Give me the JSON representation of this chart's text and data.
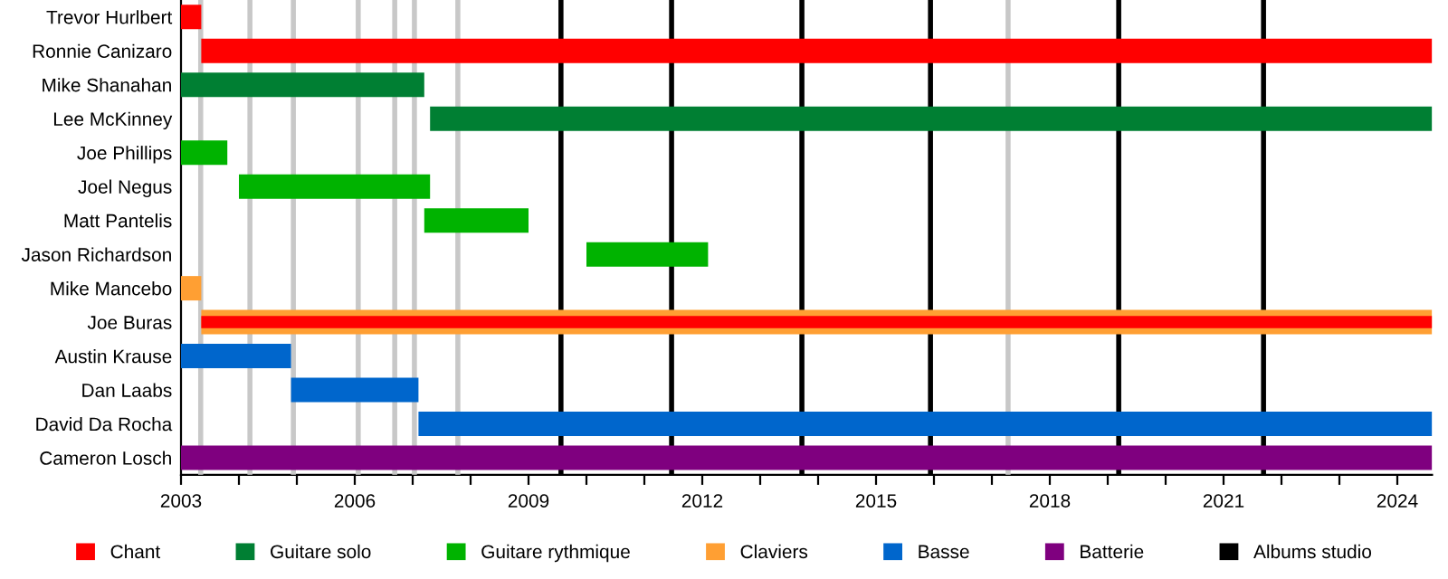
{
  "chart_data": {
    "type": "bar",
    "orientation": "horizontal",
    "categories": [
      "Trevor Hurlbert",
      "Ronnie Canizaro",
      "Mike Shanahan",
      "Lee McKinney",
      "Joe Phillips",
      "Joel Negus",
      "Matt Pantelis",
      "Jason Richardson",
      "Mike Mancebo",
      "Joe Buras",
      "Austin Krause",
      "Dan Laabs",
      "David Da Rocha",
      "Cameron Losch"
    ],
    "series": [
      {
        "name": "Chant",
        "color": "#ff0000",
        "base": [
          2003.0,
          2003.35,
          null,
          null,
          null,
          null,
          null,
          null,
          null,
          2003.35,
          null,
          null,
          null,
          null
        ],
        "values": [
          0.35,
          21.25,
          null,
          null,
          null,
          null,
          null,
          null,
          null,
          21.25,
          null,
          null,
          null,
          null
        ]
      },
      {
        "name": "Guitare solo",
        "color": "#007f33",
        "base": [
          null,
          null,
          2003.0,
          2007.3,
          null,
          null,
          null,
          null,
          null,
          null,
          null,
          null,
          null,
          null
        ],
        "values": [
          null,
          null,
          4.2,
          17.3,
          null,
          null,
          null,
          null,
          null,
          null,
          null,
          null,
          null,
          null
        ]
      },
      {
        "name": "Guitare rythmique",
        "color": "#00b300",
        "base": [
          null,
          null,
          null,
          null,
          2003.0,
          2004.0,
          2007.2,
          2010.0,
          null,
          null,
          null,
          null,
          null,
          null
        ],
        "values": [
          null,
          null,
          null,
          null,
          0.8,
          3.3,
          1.8,
          2.1,
          null,
          null,
          null,
          null,
          null,
          null
        ]
      },
      {
        "name": "Claviers",
        "color": "#ff9f33",
        "base": [
          null,
          null,
          null,
          null,
          null,
          null,
          null,
          null,
          2003.0,
          2003.35,
          null,
          null,
          null,
          null
        ],
        "values": [
          null,
          null,
          null,
          null,
          null,
          null,
          null,
          null,
          0.35,
          21.25,
          null,
          null,
          null,
          null
        ]
      },
      {
        "name": "Basse",
        "color": "#0066cc",
        "base": [
          null,
          null,
          null,
          null,
          null,
          null,
          null,
          null,
          null,
          null,
          2003.0,
          2004.9,
          2007.1,
          null
        ],
        "values": [
          null,
          null,
          null,
          null,
          null,
          null,
          null,
          null,
          null,
          null,
          1.9,
          2.2,
          17.5,
          null
        ]
      },
      {
        "name": "Batterie",
        "color": "#7f007f",
        "base": [
          null,
          null,
          null,
          null,
          null,
          null,
          null,
          null,
          null,
          null,
          null,
          null,
          null,
          2003.0
        ],
        "values": [
          null,
          null,
          null,
          null,
          null,
          null,
          null,
          null,
          null,
          null,
          null,
          null,
          null,
          21.6
        ]
      }
    ],
    "xlim": [
      2003,
      2024.6
    ],
    "xticks": [
      2003,
      {
        "value": 2004,
        "label": null
      },
      {
        "value": 2005,
        "label": null
      },
      2006,
      {
        "value": 2007,
        "label": null
      },
      {
        "value": 2008,
        "label": null
      },
      2009,
      {
        "value": 2010,
        "label": null
      },
      {
        "value": 2011,
        "label": null
      },
      2012,
      {
        "value": 2013,
        "label": null
      },
      {
        "value": 2014,
        "label": null
      },
      2015,
      {
        "value": 2016,
        "label": null
      },
      {
        "value": 2017,
        "label": null
      },
      2018,
      {
        "value": 2019,
        "label": null
      },
      {
        "value": 2020,
        "label": null
      },
      2021,
      {
        "value": 2022,
        "label": null
      },
      {
        "value": 2023,
        "label": null
      },
      2024
    ],
    "ref_lines": [
      {
        "axis": "x",
        "value": 2009.56,
        "label": "Albums studio",
        "color": "#000000"
      },
      {
        "axis": "x",
        "value": 2011.47,
        "color": "#000000"
      },
      {
        "axis": "x",
        "value": 2013.72,
        "color": "#000000"
      },
      {
        "axis": "x",
        "value": 2015.94,
        "color": "#000000"
      },
      {
        "axis": "x",
        "value": 2019.19,
        "color": "#000000"
      },
      {
        "axis": "x",
        "value": 2021.69,
        "color": "#000000"
      },
      {
        "axis": "x",
        "value": 2003.34,
        "color": "#c8c8c8"
      },
      {
        "axis": "x",
        "value": 2004.19,
        "color": "#c8c8c8"
      },
      {
        "axis": "x",
        "value": 2004.94,
        "color": "#c8c8c8"
      },
      {
        "axis": "x",
        "value": 2006.06,
        "color": "#c8c8c8"
      },
      {
        "axis": "x",
        "value": 2006.69,
        "color": "#c8c8c8"
      },
      {
        "axis": "x",
        "value": 2007.03,
        "color": "#c8c8c8"
      },
      {
        "axis": "x",
        "value": 2007.78,
        "color": "#c8c8c8"
      },
      {
        "axis": "x",
        "value": 2017.28,
        "color": "#c8c8c8"
      }
    ],
    "grid": false,
    "legend": "bottom"
  }
}
